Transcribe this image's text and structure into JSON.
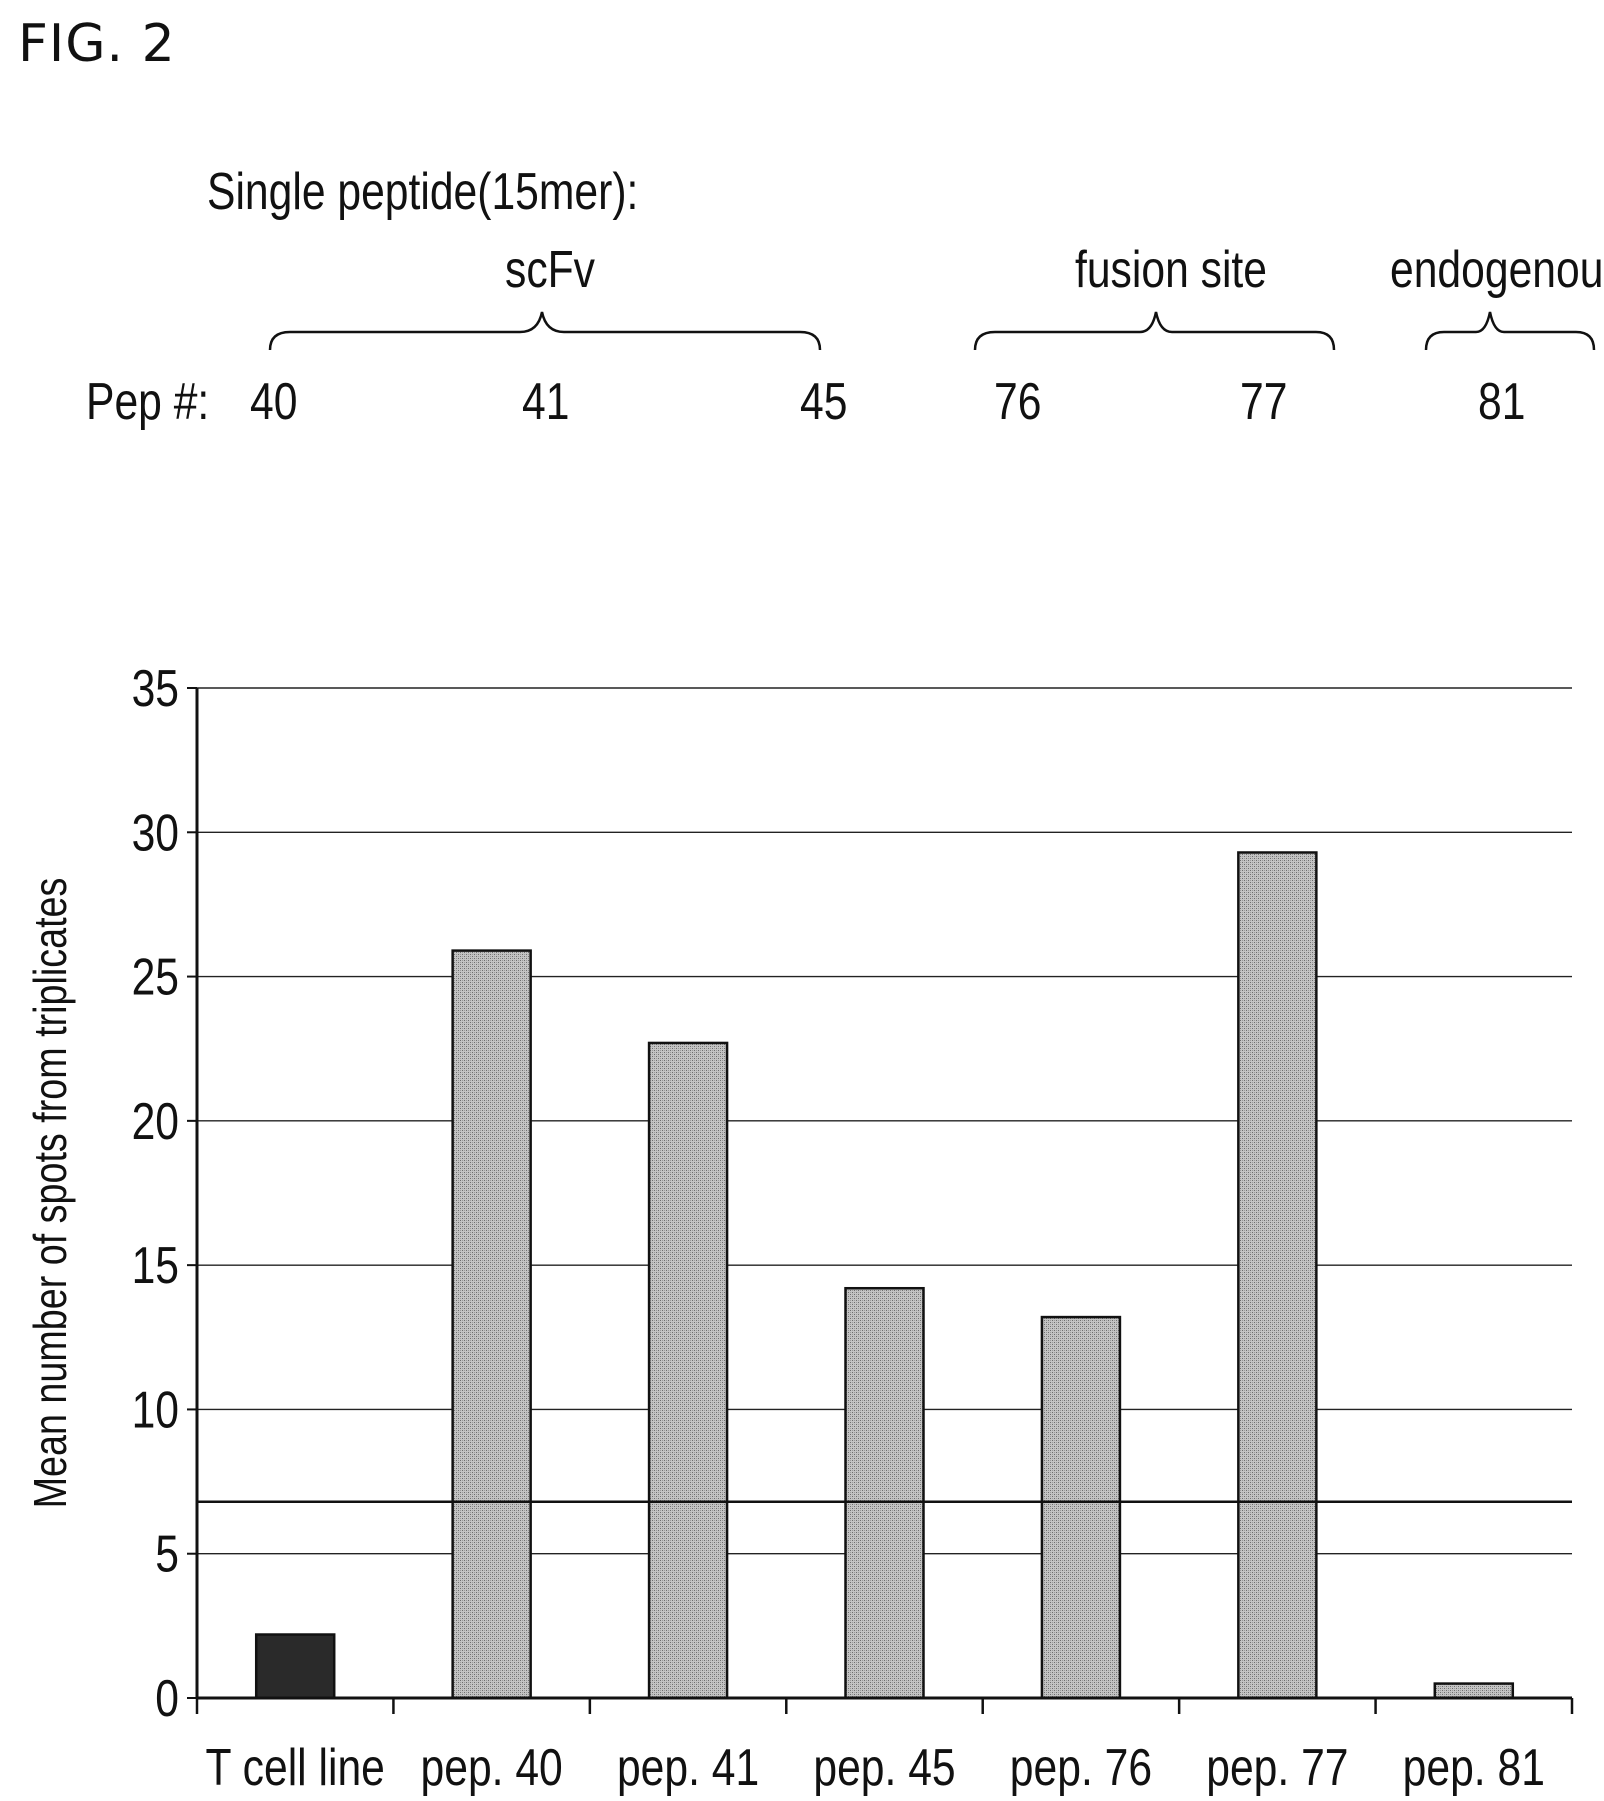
{
  "figure_label": "FIG. 2",
  "header": {
    "title": "Single peptide(15mer):",
    "groups": [
      {
        "label": "scFv",
        "peptides": [
          "40",
          "41",
          "45"
        ]
      },
      {
        "label": "fusion site",
        "peptides": [
          "76",
          "77"
        ]
      },
      {
        "label": "endogenous",
        "peptides": [
          "81"
        ]
      }
    ],
    "pep_row_label": "Pep #:"
  },
  "chart_data": {
    "type": "bar",
    "title": "",
    "xlabel": "",
    "ylabel": "Mean number of spots from triplicates",
    "ylim": [
      0,
      35
    ],
    "yticks": [
      0,
      5,
      10,
      15,
      20,
      25,
      30,
      35
    ],
    "grid": true,
    "categories": [
      "T cell line",
      "pep. 40",
      "pep. 41",
      "pep. 45",
      "pep. 76",
      "pep. 77",
      "pep. 81"
    ],
    "values": [
      2.2,
      25.9,
      22.7,
      14.2,
      13.2,
      29.3,
      0.5
    ],
    "bar_colors": [
      "#2a2a2a",
      "#b4b4b4",
      "#b4b4b4",
      "#b4b4b4",
      "#b4b4b4",
      "#b4b4b4",
      "#b4b4b4"
    ],
    "threshold_line": 6.8
  }
}
